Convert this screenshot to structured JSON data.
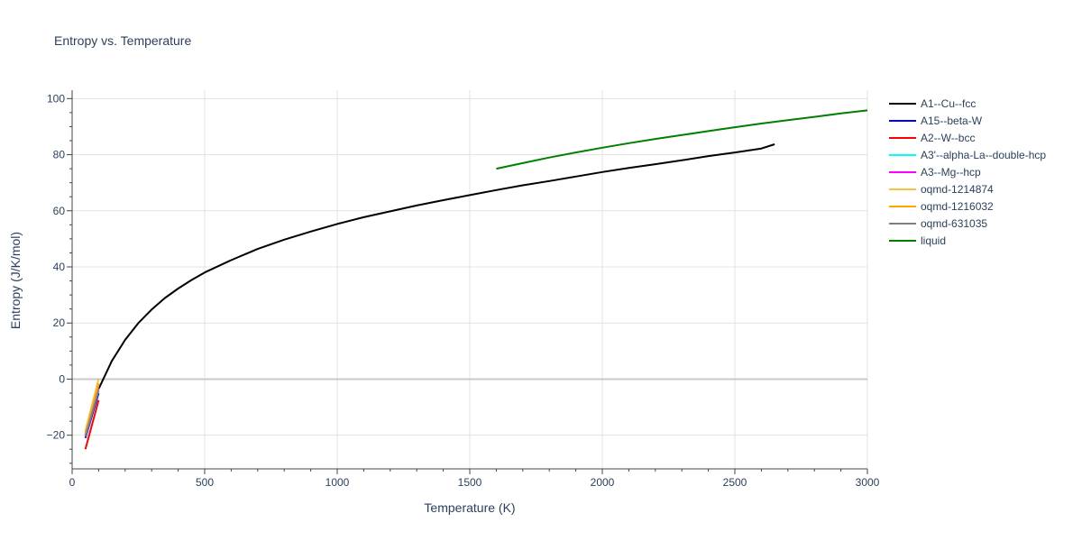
{
  "chart_data": {
    "type": "line",
    "title": "Entropy vs. Temperature",
    "xlabel": "Temperature (K)",
    "ylabel": "Entropy (J/K/mol)",
    "xlim": [
      0,
      3000
    ],
    "ylim": [
      -32,
      103
    ],
    "xticks": [
      0,
      500,
      1000,
      1500,
      2000,
      2500,
      3000
    ],
    "yticks": [
      -20,
      0,
      20,
      40,
      60,
      80,
      100
    ],
    "grid": true,
    "legend_position": "right",
    "series": [
      {
        "name": "A1--Cu--fcc",
        "color": "#000000",
        "x": [
          100,
          150,
          200,
          250,
          300,
          350,
          400,
          450,
          500,
          600,
          700,
          800,
          900,
          1000,
          1100,
          1200,
          1300,
          1400,
          1500,
          1600,
          1700,
          1800,
          1900,
          2000,
          2100,
          2200,
          2300,
          2400,
          2500,
          2600,
          2650
        ],
        "y": [
          -3.5,
          6.5,
          14,
          20,
          24.8,
          28.9,
          32.3,
          35.3,
          38,
          42.4,
          46.4,
          49.7,
          52.6,
          55.3,
          57.7,
          59.8,
          61.9,
          63.8,
          65.6,
          67.4,
          69.1,
          70.6,
          72.2,
          73.8,
          75.3,
          76.6,
          78,
          79.5,
          80.8,
          82.2,
          83.7
        ]
      },
      {
        "name": "A15--beta-W",
        "color": "#0000ff",
        "x": [
          50,
          100
        ],
        "y": [
          -21,
          -5
        ]
      },
      {
        "name": "A2--W--bcc",
        "color": "#ff0000",
        "x": [
          50,
          100
        ],
        "y": [
          -25,
          -7.5
        ]
      },
      {
        "name": "A3'--alpha-La--double-hcp",
        "color": "#00ffff",
        "x": [
          50,
          100
        ],
        "y": [
          -19,
          -2
        ]
      },
      {
        "name": "A3--Mg--hcp",
        "color": "#ff00ff",
        "x": [
          50,
          100
        ],
        "y": [
          -20,
          -3
        ]
      },
      {
        "name": "oqmd-1214874",
        "color": "#f5c242",
        "x": [
          50,
          100
        ],
        "y": [
          -18.5,
          0
        ]
      },
      {
        "name": "oqmd-1216032",
        "color": "#ffa500",
        "x": [
          50,
          100
        ],
        "y": [
          -19.5,
          -1.5
        ]
      },
      {
        "name": "oqmd-631035",
        "color": "#808080",
        "x": [
          50,
          100
        ],
        "y": [
          -20.5,
          -4
        ]
      },
      {
        "name": "liquid",
        "color": "#008000",
        "x": [
          1600,
          1700,
          1800,
          1900,
          2000,
          2100,
          2200,
          2300,
          2400,
          2500,
          2600,
          2700,
          2800,
          2900,
          3000
        ],
        "y": [
          75,
          77,
          79,
          80.8,
          82.5,
          84.1,
          85.6,
          87,
          88.4,
          89.8,
          91.1,
          92.3,
          93.5,
          94.7,
          95.8
        ]
      }
    ]
  }
}
